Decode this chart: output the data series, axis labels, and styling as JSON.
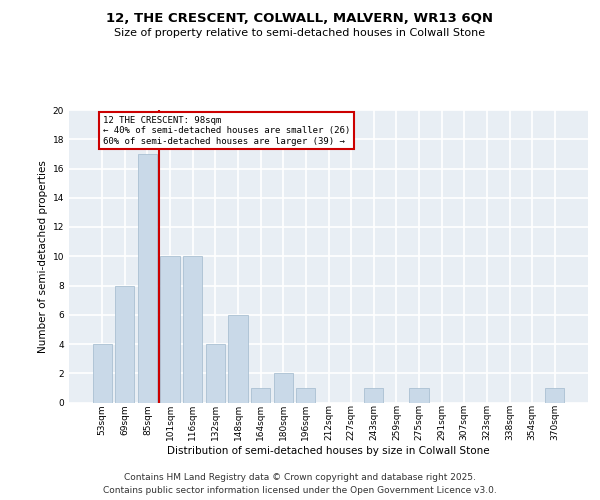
{
  "title1": "12, THE CRESCENT, COLWALL, MALVERN, WR13 6QN",
  "title2": "Size of property relative to semi-detached houses in Colwall Stone",
  "xlabel": "Distribution of semi-detached houses by size in Colwall Stone",
  "ylabel": "Number of semi-detached properties",
  "categories": [
    "53sqm",
    "69sqm",
    "85sqm",
    "101sqm",
    "116sqm",
    "132sqm",
    "148sqm",
    "164sqm",
    "180sqm",
    "196sqm",
    "212sqm",
    "227sqm",
    "243sqm",
    "259sqm",
    "275sqm",
    "291sqm",
    "307sqm",
    "323sqm",
    "338sqm",
    "354sqm",
    "370sqm"
  ],
  "values": [
    4,
    8,
    17,
    10,
    10,
    4,
    6,
    1,
    2,
    1,
    0,
    0,
    1,
    0,
    1,
    0,
    0,
    0,
    0,
    0,
    1
  ],
  "bar_color": "#c9d9e8",
  "bar_edge_color": "#a0b8cc",
  "annotation_text": "12 THE CRESCENT: 98sqm\n← 40% of semi-detached houses are smaller (26)\n60% of semi-detached houses are larger (39) →",
  "annotation_box_color": "#ffffff",
  "annotation_box_edge": "#cc0000",
  "vline_color": "#cc0000",
  "background_color": "#e8eef4",
  "grid_color": "#ffffff",
  "ylim": [
    0,
    20
  ],
  "yticks": [
    0,
    2,
    4,
    6,
    8,
    10,
    12,
    14,
    16,
    18,
    20
  ],
  "footer": "Contains HM Land Registry data © Crown copyright and database right 2025.\nContains public sector information licensed under the Open Government Licence v3.0.",
  "footer_fontsize": 6.5,
  "title1_fontsize": 9.5,
  "title2_fontsize": 8,
  "ylabel_fontsize": 7.5,
  "xlabel_fontsize": 7.5,
  "tick_fontsize": 6.5,
  "annot_fontsize": 6.5
}
